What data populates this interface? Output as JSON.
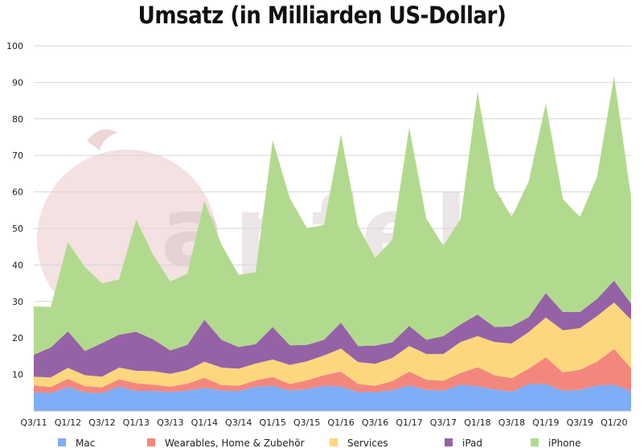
{
  "chart_data": {
    "type": "area",
    "stacked": true,
    "title": "Umsatz (in Milliarden US-Dollar)",
    "xlabel": "",
    "ylabel": "",
    "ylim": [
      0,
      100
    ],
    "y_ticks": [
      10,
      20,
      30,
      40,
      50,
      60,
      70,
      80,
      90,
      100
    ],
    "grid": "horizontal",
    "legend_position": "bottom",
    "categories": [
      "Q3/11",
      "Q4/11",
      "Q1/12",
      "Q2/12",
      "Q3/12",
      "Q4/12",
      "Q1/13",
      "Q2/13",
      "Q3/13",
      "Q4/13",
      "Q1/14",
      "Q2/14",
      "Q3/14",
      "Q4/14",
      "Q1/15",
      "Q2/15",
      "Q3/15",
      "Q4/15",
      "Q1/16",
      "Q2/16",
      "Q3/16",
      "Q4/16",
      "Q1/17",
      "Q2/17",
      "Q3/17",
      "Q4/17",
      "Q1/18",
      "Q2/18",
      "Q3/18",
      "Q4/18",
      "Q1/19",
      "Q2/19",
      "Q3/19",
      "Q4/19",
      "Q1/20",
      "Q2/20"
    ],
    "x_tick_labels": [
      "Q3/11",
      "Q1/12",
      "Q3/12",
      "Q1/13",
      "Q3/13",
      "Q1/14",
      "Q3/14",
      "Q1/15",
      "Q3/15",
      "Q1/16",
      "Q3/16",
      "Q1/17",
      "Q3/17",
      "Q1/18",
      "Q3/18",
      "Q1/19",
      "Q3/19",
      "Q1/20"
    ],
    "series": [
      {
        "name": "Mac",
        "color": "#7fadf7",
        "values": [
          5.2,
          4.9,
          6.6,
          5.1,
          4.9,
          6.7,
          5.5,
          5.5,
          5.2,
          5.6,
          6.4,
          5.6,
          5.5,
          6.6,
          6.9,
          5.6,
          6.0,
          6.9,
          6.7,
          5.2,
          5.2,
          5.7,
          7.0,
          5.8,
          5.6,
          7.2,
          6.8,
          5.9,
          5.3,
          7.4,
          7.4,
          5.5,
          5.8,
          7.0,
          7.2,
          5.4
        ]
      },
      {
        "name": "Wearables, Home & Zubehör",
        "color": "#f4877d",
        "values": [
          1.8,
          1.7,
          2.2,
          1.7,
          1.6,
          2.0,
          2.1,
          1.7,
          1.5,
          1.9,
          2.7,
          1.5,
          1.4,
          1.8,
          2.4,
          1.8,
          2.4,
          2.9,
          4.1,
          2.2,
          1.7,
          2.5,
          3.8,
          2.8,
          2.7,
          3.2,
          5.2,
          3.9,
          3.7,
          4.2,
          7.3,
          5.1,
          5.5,
          6.5,
          9.8,
          6.3
        ]
      },
      {
        "name": "Services",
        "color": "#fcd77e",
        "values": [
          2.4,
          2.6,
          3.0,
          3.0,
          2.9,
          3.2,
          3.4,
          3.7,
          3.5,
          3.7,
          4.4,
          4.8,
          4.7,
          4.6,
          4.8,
          5.2,
          5.2,
          5.4,
          6.3,
          6.0,
          6.0,
          6.3,
          7.0,
          7.0,
          7.3,
          8.5,
          8.5,
          9.1,
          9.5,
          10.0,
          10.9,
          11.5,
          11.4,
          12.5,
          12.7,
          13.3
        ]
      },
      {
        "name": "iPad",
        "color": "#9562a6",
        "values": [
          6.0,
          8.2,
          10.0,
          6.6,
          9.2,
          9.0,
          10.7,
          8.7,
          6.4,
          6.9,
          11.5,
          7.6,
          5.9,
          5.3,
          8.9,
          5.4,
          4.5,
          4.3,
          7.1,
          4.4,
          5.0,
          4.3,
          5.5,
          3.9,
          4.9,
          4.8,
          5.9,
          4.1,
          4.7,
          4.1,
          6.7,
          5.0,
          4.4,
          4.7,
          6.0,
          4.4
        ]
      },
      {
        "name": "iPhone",
        "color": "#b2da8e",
        "values": [
          13.3,
          11.1,
          24.4,
          23.0,
          16.4,
          15.1,
          30.7,
          23.1,
          18.9,
          19.5,
          32.5,
          26.1,
          19.8,
          19.7,
          51.2,
          40.3,
          32.0,
          31.4,
          51.6,
          32.9,
          24.0,
          28.1,
          54.4,
          33.2,
          24.8,
          28.8,
          61.1,
          38.0,
          29.9,
          37.2,
          51.9,
          31.0,
          26.0,
          33.4,
          56.0,
          29.0
        ]
      }
    ]
  }
}
